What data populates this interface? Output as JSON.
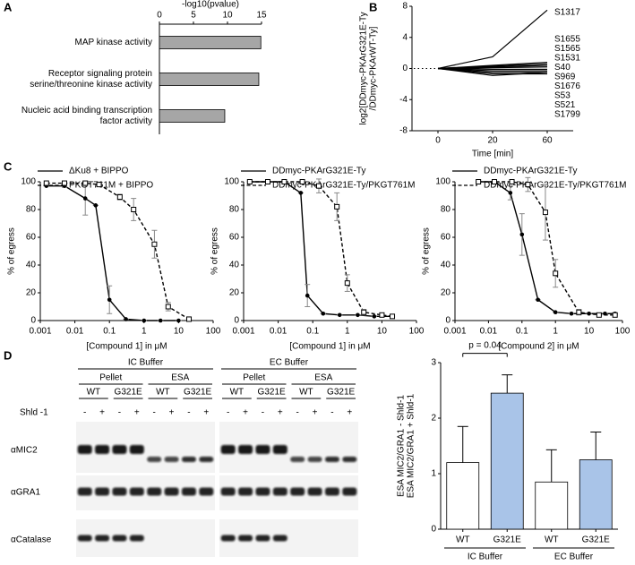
{
  "panel_labels": [
    "A",
    "B",
    "C",
    "D"
  ],
  "chart_data": [
    {
      "type": "bar",
      "orientation": "horizontal",
      "xlabel": "-log10(pvalue)",
      "categories": [
        "MAP kinase activity",
        "Receptor signaling protein serine/threonine kinase activity",
        "Nucleic acid binding transcription factor activity"
      ],
      "values": [
        14.9,
        14.6,
        9.6
      ],
      "color": "#a6a6a6",
      "xlim": [
        0,
        15
      ],
      "xticks": [
        0,
        5,
        10,
        15
      ]
    },
    {
      "type": "line",
      "ylabel": [
        "log2[DDmyc-PKArG321E-Ty",
        "/DDmyc-PKArWT-Ty]"
      ],
      "xlabel": "Time [min]",
      "categories": [
        "0",
        "20",
        "60"
      ],
      "ylim": [
        -8,
        8
      ],
      "yticks": [
        -8,
        -4,
        0,
        4,
        8
      ],
      "series": [
        {
          "name": "S1317",
          "color": "#000000",
          "values": [
            0,
            1.5,
            7.5
          ]
        },
        {
          "name": "S1655",
          "color": "#000000",
          "values": [
            0,
            0.4,
            0.8
          ]
        },
        {
          "name": "S1565",
          "color": "#000000",
          "values": [
            0,
            0.3,
            0.6
          ]
        },
        {
          "name": "S1531",
          "color": "#000000",
          "values": [
            0,
            0.2,
            0.4
          ]
        },
        {
          "name": "S40",
          "color": "#000000",
          "values": [
            0,
            0.1,
            0.2
          ]
        },
        {
          "name": "S969",
          "color": "#000000",
          "values": [
            0,
            -0.1,
            -0.1
          ]
        },
        {
          "name": "S1676",
          "color": "#000000",
          "values": [
            0,
            -0.3,
            -0.3
          ]
        },
        {
          "name": "S53",
          "color": "#000000",
          "values": [
            0,
            -0.5,
            -0.5
          ]
        },
        {
          "name": "S521",
          "color": "#000000",
          "values": [
            0,
            -0.7,
            -0.7
          ]
        },
        {
          "name": "S1799",
          "color": "#000000",
          "values": [
            0,
            -0.9,
            -0.5
          ]
        }
      ]
    },
    {
      "type": "line",
      "xscale": "log",
      "xlabel": "[Compound 1] in μM",
      "ylabel": "% of egress",
      "xlim": [
        0.001,
        100
      ],
      "xticks": [
        0.001,
        0.01,
        0.1,
        1,
        10,
        100
      ],
      "ylim": [
        0,
        100
      ],
      "yticks": [
        0,
        20,
        40,
        60,
        80,
        100
      ],
      "series": [
        {
          "name": "ΔKu8 + BIPPO",
          "color": "#000000",
          "style": "solid",
          "marker": "circle",
          "x": [
            0.0015,
            0.005,
            0.02,
            0.04,
            0.1,
            0.3,
            1,
            3,
            10
          ],
          "values": [
            97,
            97,
            88,
            83,
            15,
            1,
            0,
            0,
            0
          ],
          "errors": [
            0,
            1,
            12,
            0,
            10,
            0,
            0,
            0,
            0
          ]
        },
        {
          "name": "PKGT761M + BIPPO",
          "color": "#000000",
          "style": "dashed",
          "marker": "square",
          "x": [
            0.0015,
            0.005,
            0.02,
            0.05,
            0.2,
            0.5,
            2,
            5,
            20
          ],
          "values": [
            99,
            99,
            99,
            98,
            89,
            80,
            55,
            10,
            1
          ],
          "errors": [
            0,
            0,
            0,
            0,
            2,
            8,
            10,
            3,
            0
          ]
        }
      ]
    },
    {
      "type": "line",
      "xscale": "log",
      "xlabel": "[Compound 1] in μM",
      "ylabel": "% of egress",
      "xlim": [
        0.001,
        100
      ],
      "xticks": [
        0.001,
        0.01,
        0.1,
        1,
        10,
        100
      ],
      "ylim": [
        0,
        100
      ],
      "yticks": [
        0,
        20,
        40,
        60,
        80,
        100
      ],
      "series": [
        {
          "name": "DDmyc-PKArG321E-Ty",
          "color": "#000000",
          "style": "solid",
          "marker": "circle",
          "x": [
            0.0015,
            0.005,
            0.015,
            0.045,
            0.07,
            0.2,
            0.6,
            2,
            6,
            20
          ],
          "values": [
            100,
            100,
            100,
            92,
            18,
            5,
            4,
            4,
            3,
            3
          ],
          "errors": [
            0,
            0,
            0,
            0,
            8,
            0,
            0,
            0,
            0,
            0
          ]
        },
        {
          "name": "DDmyc-PKArG321E-Ty/PKGT761M",
          "color": "#000000",
          "style": "dashed",
          "marker": "square",
          "x": [
            0.0015,
            0.005,
            0.015,
            0.05,
            0.15,
            0.5,
            1,
            3,
            10,
            20
          ],
          "values": [
            100,
            100,
            100,
            100,
            97,
            82,
            27,
            6,
            4,
            3
          ],
          "errors": [
            0,
            0,
            0,
            0,
            5,
            10,
            6,
            2,
            0,
            0
          ]
        }
      ]
    },
    {
      "type": "line",
      "xscale": "log",
      "xlabel": "[Compound 2] in μM",
      "ylabel": "% of egress",
      "xlim": [
        0.001,
        100
      ],
      "xticks": [
        0.001,
        0.01,
        0.1,
        1,
        10,
        100
      ],
      "ylim": [
        0,
        100
      ],
      "yticks": [
        0,
        20,
        40,
        60,
        80,
        100
      ],
      "series": [
        {
          "name": "DDmyc-PKArG321E-Ty",
          "color": "#000000",
          "style": "solid",
          "marker": "circle",
          "x": [
            0.005,
            0.015,
            0.045,
            0.1,
            0.3,
            1,
            3,
            10,
            30,
            60
          ],
          "values": [
            100,
            100,
            92,
            62,
            15,
            6,
            5,
            5,
            5,
            5
          ],
          "errors": [
            0,
            0,
            5,
            15,
            0,
            0,
            0,
            0,
            0,
            0
          ]
        },
        {
          "name": "DDmyc-PKArG321E-Ty/PKGT761M",
          "color": "#000000",
          "style": "dashed",
          "marker": "square",
          "x": [
            0.005,
            0.015,
            0.05,
            0.15,
            0.5,
            1,
            5,
            20,
            60
          ],
          "values": [
            100,
            100,
            100,
            98,
            78,
            34,
            6,
            4,
            4
          ],
          "errors": [
            0,
            0,
            0,
            5,
            20,
            10,
            2,
            0,
            0
          ]
        }
      ]
    },
    {
      "type": "bar",
      "ylabel": [
        "ESA MIC2/GRA1 - Shld-1",
        "ESA MIC2/GRA1 + Shld-1"
      ],
      "categories": [
        "WT",
        "G321E",
        "WT",
        "G321E"
      ],
      "values": [
        1.2,
        2.45,
        0.85,
        1.25
      ],
      "errors": [
        0.65,
        0.33,
        0.58,
        0.5
      ],
      "colors": [
        "#ffffff",
        "#a9c4e8",
        "#ffffff",
        "#a9c4e8"
      ],
      "groups": [
        "IC Buffer",
        "EC Buffer"
      ],
      "annotation": "p = 0.04",
      "ylim": [
        0,
        3
      ],
      "yticks": [
        0,
        1,
        2,
        3
      ]
    }
  ],
  "blot": {
    "groups": [
      "IC Buffer",
      "EC Buffer"
    ],
    "fractions": [
      "Pellet",
      "ESA"
    ],
    "strains": [
      "WT",
      "G321E"
    ],
    "treatment": "Shld -1",
    "signs": [
      "-",
      "+"
    ],
    "antibodies": [
      "αMIC2",
      "αGRA1",
      "αCatalase"
    ]
  }
}
